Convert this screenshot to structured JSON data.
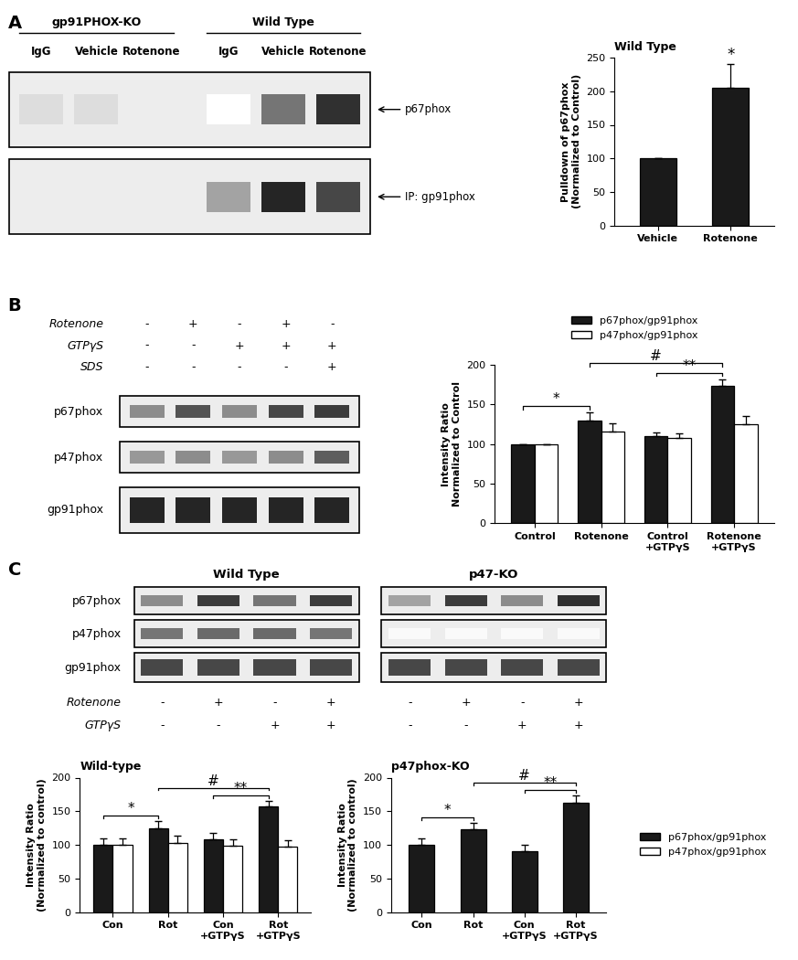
{
  "panel_labels": [
    "A",
    "B",
    "C"
  ],
  "blots": [
    {
      "groups": [
        {
          "label": "gp91PHOX-KO",
          "lanes": [
            "IgG",
            "Vehicle",
            "Rotenone"
          ]
        },
        {
          "label": "Wild Type",
          "lanes": [
            "IgG",
            "Vehicle",
            "Rotenone"
          ]
        }
      ],
      "rows": [
        {
          "label": "p67phox",
          "bands": [
            0.15,
            0.15,
            0.08,
            0.0,
            0.6,
            0.9
          ]
        },
        {
          "label": "IP: gp91phox",
          "bands": [
            0.08,
            0.08,
            0.08,
            0.4,
            0.95,
            0.8
          ]
        }
      ]
    },
    {
      "conditions": [
        {
          "label": "Rotenone",
          "signs": [
            "-",
            "+",
            "-",
            "+",
            "-"
          ]
        },
        {
          "label": "GTPγS",
          "signs": [
            "-",
            "-",
            "+",
            "+",
            "+"
          ]
        },
        {
          "label": "SDS",
          "signs": [
            "-",
            "-",
            "-",
            "-",
            "+"
          ]
        }
      ],
      "rows": [
        {
          "label": "p67phox",
          "bands": [
            0.5,
            0.75,
            0.5,
            0.8,
            0.85
          ]
        },
        {
          "label": "p47phox",
          "bands": [
            0.45,
            0.5,
            0.45,
            0.5,
            0.7
          ]
        },
        {
          "label": "gp91phox",
          "bands": [
            0.95,
            0.95,
            0.95,
            0.95,
            0.95
          ]
        }
      ]
    },
    {
      "groups": [
        {
          "label": "Wild Type"
        },
        {
          "label": "p47-KO"
        }
      ],
      "rows": [
        {
          "label": "p67phox",
          "bands": [
            0.5,
            0.85,
            0.6,
            0.85,
            0.4,
            0.85,
            0.5,
            0.9
          ]
        },
        {
          "label": "p47phox",
          "bands": [
            0.6,
            0.65,
            0.65,
            0.6,
            0.02,
            0.02,
            0.02,
            0.02
          ]
        },
        {
          "label": "gp91phox",
          "bands": [
            0.8,
            0.8,
            0.8,
            0.8,
            0.8,
            0.8,
            0.8,
            0.8
          ]
        }
      ],
      "conditions": [
        {
          "label": "Rotenone",
          "signs": [
            "-",
            "+",
            "-",
            "+",
            "-",
            "+",
            "-",
            "+"
          ]
        },
        {
          "label": "GTPγS",
          "signs": [
            "-",
            "-",
            "+",
            "+",
            "-",
            "-",
            "+",
            "+"
          ]
        }
      ]
    }
  ],
  "chart_data": [
    {
      "type": "bar",
      "title": "Wild Type",
      "categories": [
        "Vehicle",
        "Rotenone"
      ],
      "values": [
        100,
        205
      ],
      "errors": [
        0,
        35
      ],
      "color": "#1a1a1a",
      "y_label": "Pulldown of p67phox (Normalized to Control)",
      "ylim": [
        0,
        250
      ],
      "yticks": [
        0,
        50,
        100,
        150,
        200,
        250
      ],
      "marks": [
        {
          "text": "*",
          "at": 1
        }
      ]
    },
    {
      "type": "bar",
      "categories": [
        "Control",
        "Rotenone",
        "Control +GTPγS",
        "Rotenone +GTPγS"
      ],
      "series": [
        {
          "name": "p67phox/gp91phox",
          "color": "#1a1a1a",
          "values": [
            100,
            130,
            110,
            173
          ],
          "errors": [
            0,
            10,
            4,
            9
          ]
        },
        {
          "name": "p47phox/gp91phox",
          "color": "#ffffff",
          "values": [
            100,
            116,
            108,
            125
          ],
          "errors": [
            0,
            10,
            5,
            10
          ]
        }
      ],
      "y_label": "Intensity Ratio Normalized to Control",
      "ylim": [
        0,
        200
      ],
      "yticks": [
        0,
        50,
        100,
        150,
        200
      ],
      "legend": "above",
      "brackets": [
        {
          "text": "*",
          "between": [
            0,
            1
          ]
        },
        {
          "text": "**",
          "between": [
            2,
            3
          ]
        },
        {
          "text": "#",
          "between": [
            1,
            3
          ]
        }
      ]
    },
    {
      "type": "bar",
      "title": "Wild-type",
      "categories": [
        "Con",
        "Rot",
        "Con +GTPγS",
        "Rot +GTPγS"
      ],
      "series": [
        {
          "name": "p67phox/gp91phox",
          "color": "#1a1a1a",
          "values": [
            100,
            125,
            108,
            157
          ],
          "errors": [
            10,
            10,
            10,
            8
          ]
        },
        {
          "name": "p47phox/gp91phox",
          "color": "#ffffff",
          "values": [
            100,
            103,
            98,
            97
          ],
          "errors": [
            10,
            10,
            10,
            10
          ]
        }
      ],
      "y_label": "Intensity Ratio (Normalized to control)",
      "ylim": [
        0,
        200
      ],
      "yticks": [
        0,
        50,
        100,
        150,
        200
      ],
      "legend": "right",
      "brackets": [
        {
          "text": "*",
          "between": [
            0,
            1
          ]
        },
        {
          "text": "**",
          "between": [
            2,
            3
          ]
        },
        {
          "text": "#",
          "between": [
            1,
            3
          ]
        }
      ]
    },
    {
      "type": "bar",
      "title": "p47phox-KO",
      "categories": [
        "Con",
        "Rot",
        "Con +GTPγS",
        "Rot +GTPγS"
      ],
      "series": [
        {
          "name": "p67phox/gp91phox",
          "color": "#1a1a1a",
          "values": [
            100,
            123,
            90,
            163
          ],
          "errors": [
            10,
            10,
            10,
            10
          ]
        }
      ],
      "y_label": "Intensity Ratio (Normalized to control)",
      "ylim": [
        0,
        200
      ],
      "yticks": [
        0,
        50,
        100,
        150,
        200
      ],
      "brackets": [
        {
          "text": "*",
          "between": [
            0,
            1
          ]
        },
        {
          "text": "**",
          "between": [
            2,
            3
          ]
        },
        {
          "text": "#",
          "between": [
            1,
            3
          ]
        }
      ]
    }
  ]
}
